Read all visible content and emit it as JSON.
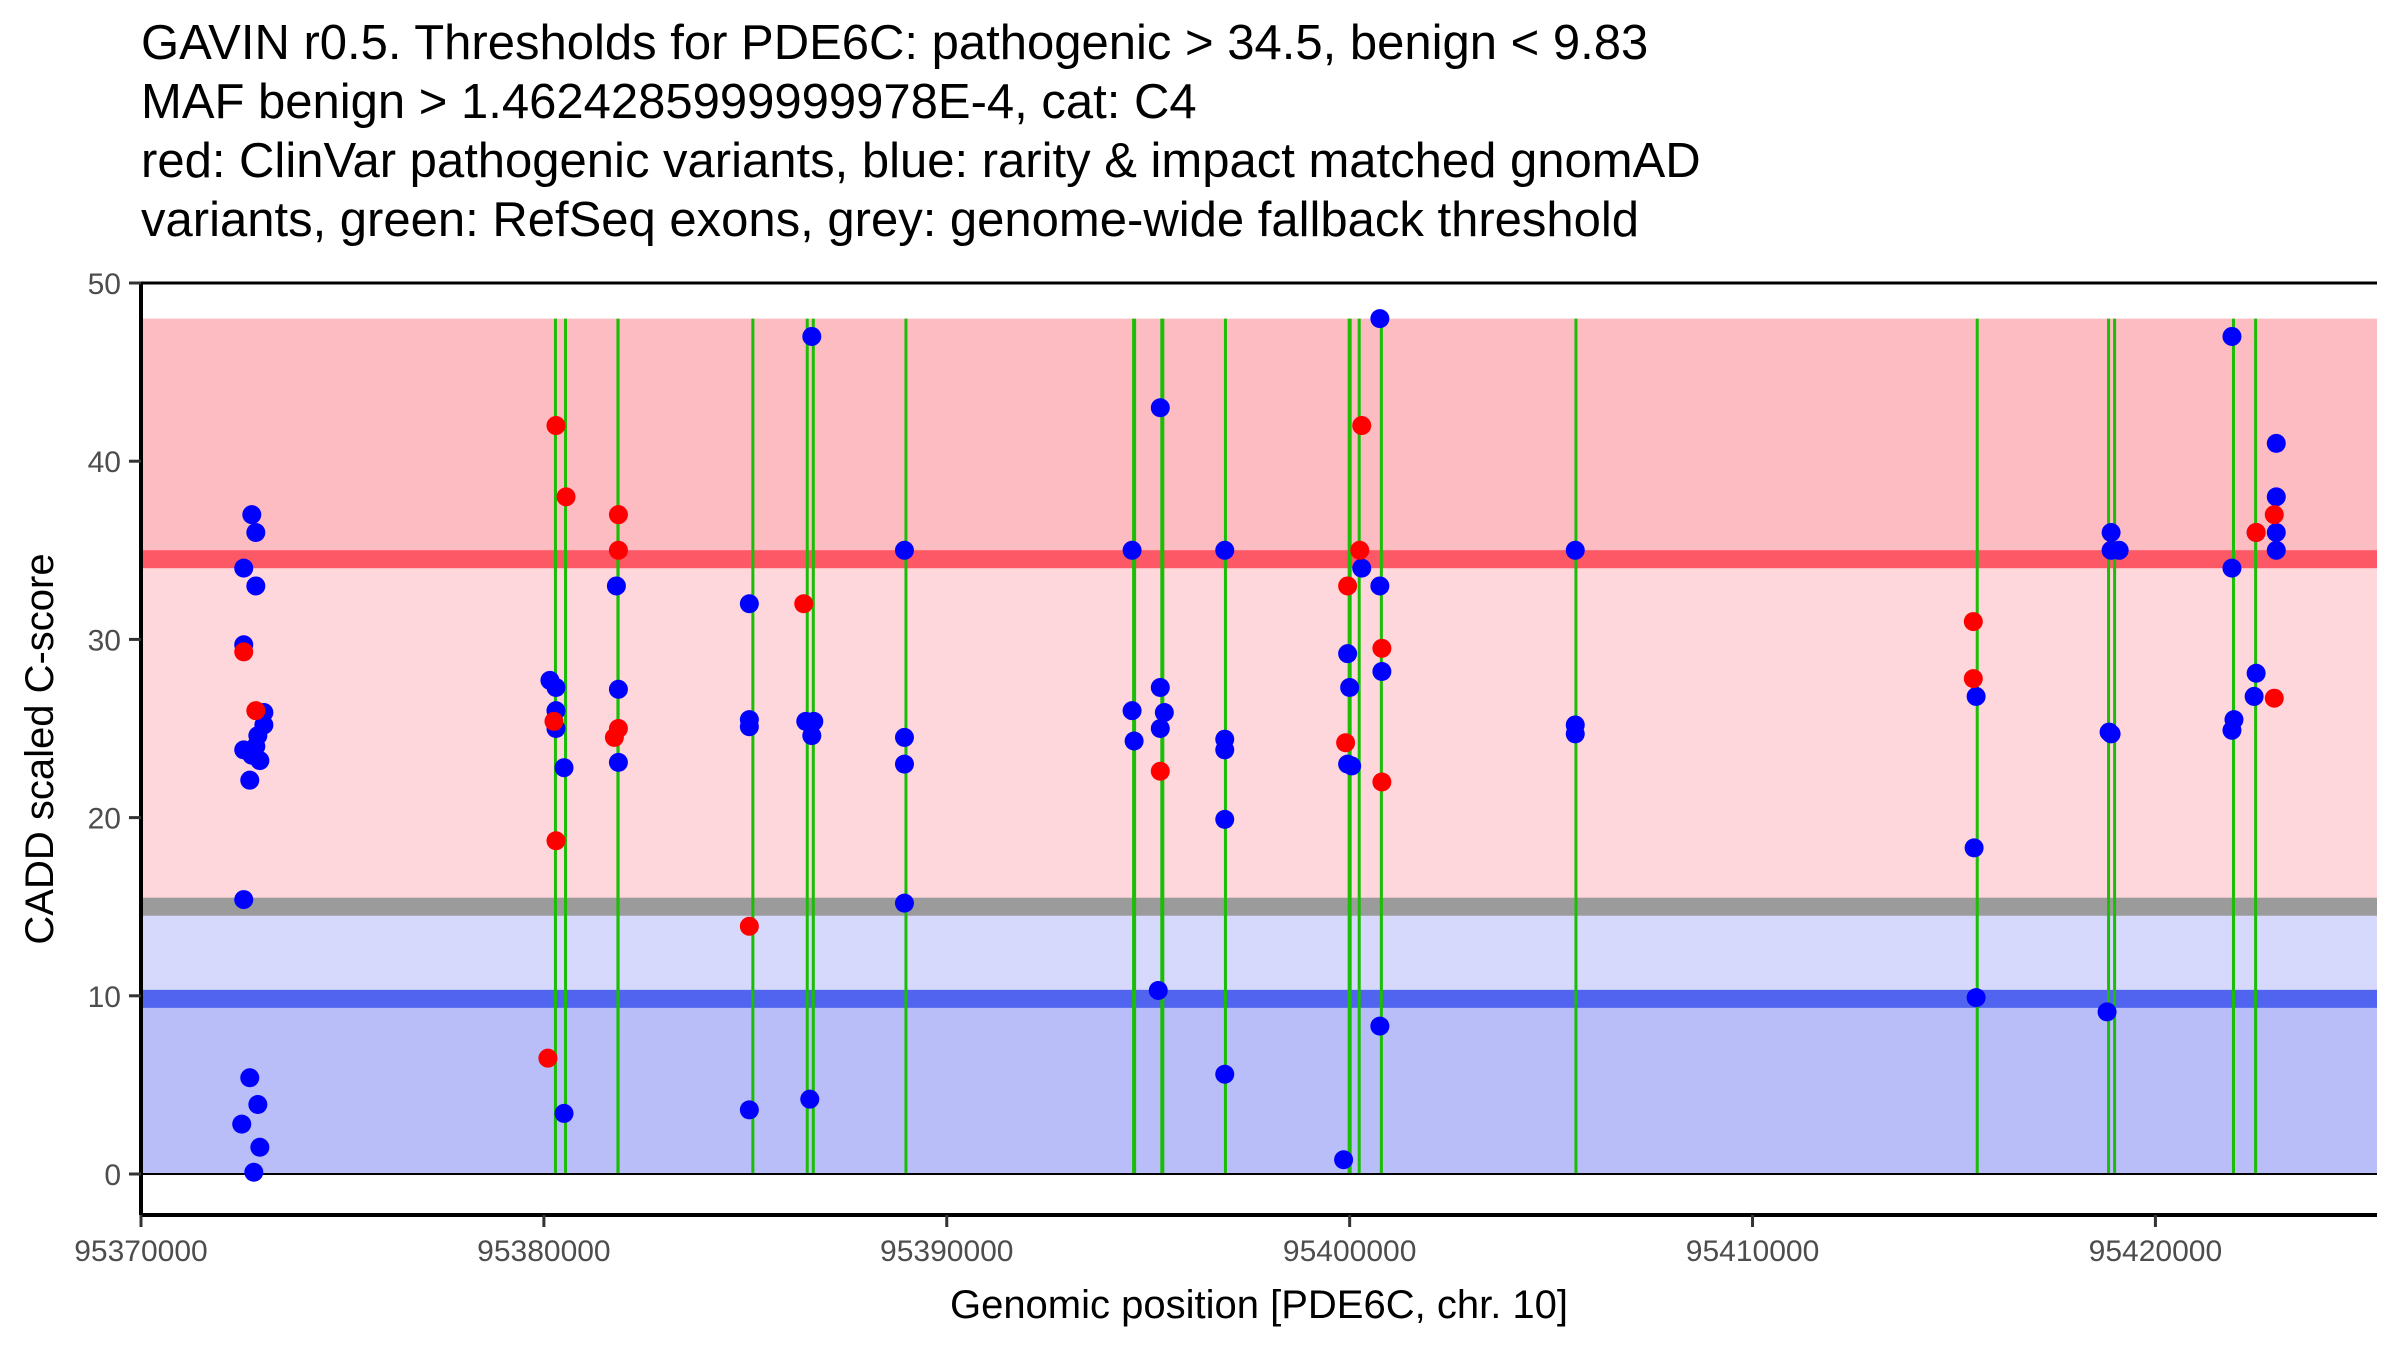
{
  "chart_data": {
    "type": "scatter",
    "title_lines": [
      "GAVIN r0.5. Thresholds for PDE6C: pathogenic > 34.5, benign < 9.83",
      "MAF benign > 1.4624285999999978E-4, cat: C4",
      "red: ClinVar pathogenic variants, blue: rarity & impact matched gnomAD",
      "variants, green: RefSeq exons, grey: genome-wide fallback threshold"
    ],
    "xlabel": "Genomic position [PDE6C, chr. 10]",
    "ylabel": "CADD scaled C-score",
    "xlim": [
      95370000,
      95425500
    ],
    "ylim": [
      -2.3,
      50
    ],
    "xticks": [
      95370000,
      95380000,
      95390000,
      95400000,
      95410000,
      95420000
    ],
    "xtick_labels": [
      "95370000",
      "95380000",
      "95390000",
      "95400000",
      "95410000",
      "95420000"
    ],
    "yticks": [
      0,
      10,
      20,
      30,
      40,
      50
    ],
    "ytick_labels": [
      "0",
      "10",
      "20",
      "30",
      "40",
      "50"
    ],
    "grid": false,
    "bands": [
      {
        "name": "pathogenic-zone",
        "y0": 34.5,
        "y1": 48,
        "color": "#fcbcc1"
      },
      {
        "name": "grey-to-pathogenic-zone",
        "y0": 15,
        "y1": 34.5,
        "color": "#fdd7dc"
      },
      {
        "name": "benign-to-grey-zone",
        "y0": 9.83,
        "y1": 15,
        "color": "#d6d8fc"
      },
      {
        "name": "benign-zone",
        "y0": 0,
        "y1": 9.83,
        "color": "#b9bdf8"
      }
    ],
    "threshold_lines": [
      {
        "name": "pathogenic-threshold",
        "y": 34.5,
        "color": "#fc5865"
      },
      {
        "name": "fallback-threshold",
        "y": 15,
        "color": "#9b9b9b"
      },
      {
        "name": "benign-threshold",
        "y": 9.83,
        "color": "#5064f0"
      }
    ],
    "exons": [
      [
        95380250,
        95380300
      ],
      [
        95380500,
        95380540
      ],
      [
        95381800,
        95381880
      ],
      [
        95385150,
        95385180
      ],
      [
        95386500,
        95386540
      ],
      [
        95386650,
        95386690
      ],
      [
        95388950,
        95388980
      ],
      [
        95394600,
        95394700
      ],
      [
        95395300,
        95395400
      ],
      [
        95396880,
        95396910
      ],
      [
        95399950,
        95400050
      ],
      [
        95400200,
        95400250
      ],
      [
        95400750,
        95400800
      ],
      [
        95405580,
        95405610
      ],
      [
        95415540,
        95415580
      ],
      [
        95418800,
        95418850
      ],
      [
        95418950,
        95418980
      ],
      [
        95421900,
        95421930
      ],
      [
        95422450,
        95422480
      ]
    ],
    "exon_color": "#1cbd06",
    "series": [
      {
        "name": "ClinVar pathogenic",
        "color": "#ff0000",
        "points": [
          [
            95372550,
            29.3
          ],
          [
            95372850,
            26.0
          ],
          [
            95380250,
            25.4
          ],
          [
            95380300,
            42.0
          ],
          [
            95380550,
            38.0
          ],
          [
            95380300,
            18.7
          ],
          [
            95380100,
            6.5
          ],
          [
            95381750,
            24.5
          ],
          [
            95381850,
            25.0
          ],
          [
            95381850,
            37.0
          ],
          [
            95381850,
            35.0
          ],
          [
            95385100,
            13.9
          ],
          [
            95386450,
            32.0
          ],
          [
            95395300,
            22.6
          ],
          [
            95399900,
            24.2
          ],
          [
            95399950,
            33.0
          ],
          [
            95400300,
            42.0
          ],
          [
            95400250,
            35.0
          ],
          [
            95400800,
            29.5
          ],
          [
            95400800,
            22.0
          ],
          [
            95415480,
            31.0
          ],
          [
            95415480,
            27.8
          ],
          [
            95422500,
            36.0
          ],
          [
            95422950,
            37.0
          ],
          [
            95422950,
            26.7
          ]
        ]
      },
      {
        "name": "gnomAD matched",
        "color": "#0000ff",
        "points": [
          [
            95372550,
            34.0
          ],
          [
            95372750,
            37.0
          ],
          [
            95372850,
            36.0
          ],
          [
            95372850,
            33.0
          ],
          [
            95372550,
            29.7
          ],
          [
            95373050,
            25.9
          ],
          [
            95373050,
            25.2
          ],
          [
            95372900,
            24.6
          ],
          [
            95372850,
            24.0
          ],
          [
            95372550,
            23.8
          ],
          [
            95372750,
            23.5
          ],
          [
            95372950,
            23.2
          ],
          [
            95372700,
            22.1
          ],
          [
            95372550,
            15.4
          ],
          [
            95372700,
            5.4
          ],
          [
            95372900,
            3.9
          ],
          [
            95372500,
            2.8
          ],
          [
            95372950,
            1.5
          ],
          [
            95372800,
            0.1
          ],
          [
            95380150,
            27.7
          ],
          [
            95380300,
            27.3
          ],
          [
            95380300,
            26.0
          ],
          [
            95380300,
            25.0
          ],
          [
            95380500,
            22.8
          ],
          [
            95380500,
            3.4
          ],
          [
            95381800,
            33.0
          ],
          [
            95381850,
            27.2
          ],
          [
            95381850,
            23.1
          ],
          [
            95385100,
            32.0
          ],
          [
            95385100,
            25.5
          ],
          [
            95385100,
            25.1
          ],
          [
            95385100,
            3.6
          ],
          [
            95386500,
            25.4
          ],
          [
            95386700,
            25.4
          ],
          [
            95386650,
            24.6
          ],
          [
            95386650,
            47.0
          ],
          [
            95386600,
            4.2
          ],
          [
            95388950,
            35.0
          ],
          [
            95388950,
            24.5
          ],
          [
            95388950,
            23.0
          ],
          [
            95388950,
            15.2
          ],
          [
            95394600,
            35.0
          ],
          [
            95394600,
            26.0
          ],
          [
            95394650,
            24.3
          ],
          [
            95395300,
            43.0
          ],
          [
            95395300,
            27.3
          ],
          [
            95395400,
            25.9
          ],
          [
            95395300,
            25.0
          ],
          [
            95395250,
            10.3
          ],
          [
            95396900,
            35.0
          ],
          [
            95396900,
            24.4
          ],
          [
            95396900,
            23.8
          ],
          [
            95396900,
            19.9
          ],
          [
            95396900,
            5.6
          ],
          [
            95399950,
            29.2
          ],
          [
            95400000,
            27.3
          ],
          [
            95399950,
            23.0
          ],
          [
            95400050,
            22.9
          ],
          [
            95399850,
            0.8
          ],
          [
            95400300,
            34.0
          ],
          [
            95400750,
            48.0
          ],
          [
            95400750,
            33.0
          ],
          [
            95400800,
            28.2
          ],
          [
            95400750,
            8.3
          ],
          [
            95405600,
            35.0
          ],
          [
            95405600,
            25.2
          ],
          [
            95405600,
            24.7
          ],
          [
            95415550,
            26.8
          ],
          [
            95415500,
            18.3
          ],
          [
            95415550,
            9.9
          ],
          [
            95418900,
            36.0
          ],
          [
            95418900,
            35.0
          ],
          [
            95419100,
            35.0
          ],
          [
            95418850,
            24.8
          ],
          [
            95418900,
            24.7
          ],
          [
            95418800,
            9.1
          ],
          [
            95421900,
            47.0
          ],
          [
            95421900,
            34.0
          ],
          [
            95421950,
            25.5
          ],
          [
            95421900,
            24.9
          ],
          [
            95422500,
            36.0
          ],
          [
            95422500,
            28.1
          ],
          [
            95422450,
            26.8
          ],
          [
            95423000,
            41.0
          ],
          [
            95423000,
            38.0
          ],
          [
            95423000,
            36.0
          ],
          [
            95423000,
            35.0
          ]
        ]
      }
    ]
  }
}
